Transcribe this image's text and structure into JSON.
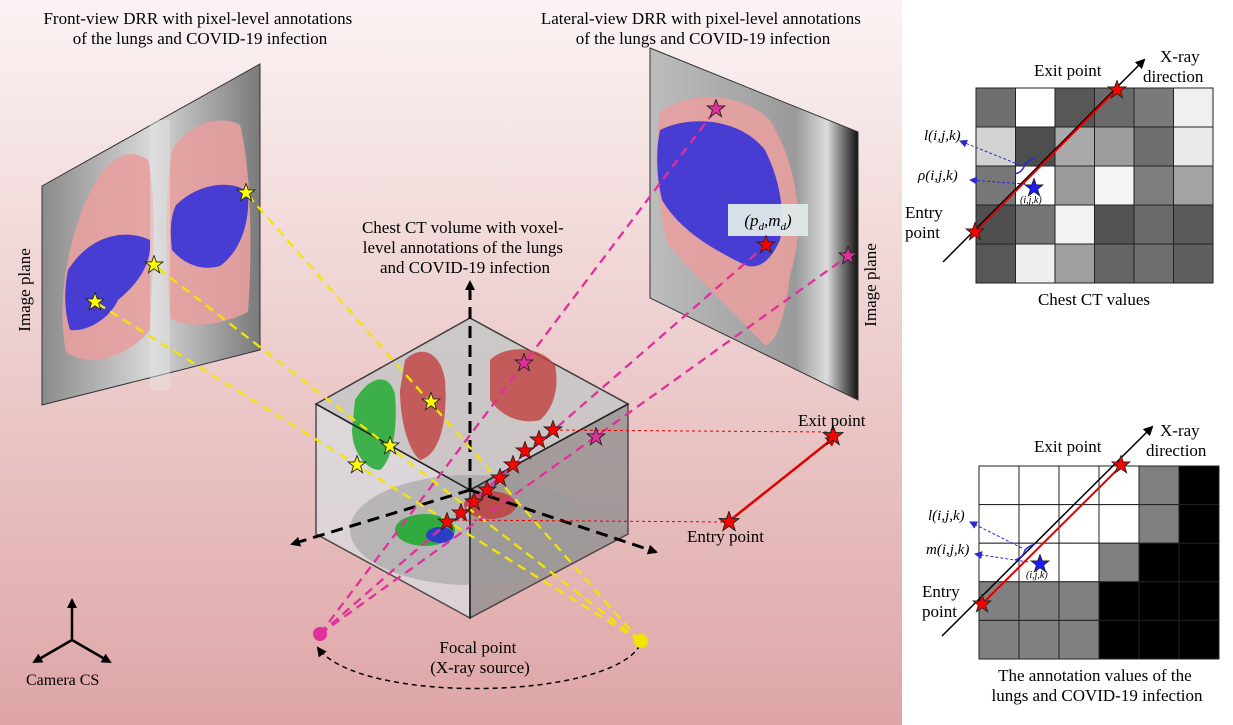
{
  "main": {
    "front_title": [
      "Front-view DRR with pixel-level annotations",
      "of the lungs and COVID-19 infection"
    ],
    "lateral_title": [
      "Lateral-view DRR with pixel-level annotations",
      "of the lungs and COVID-19 infection"
    ],
    "ct_title": [
      "Chest CT volume with voxel-",
      "level annotations of the lungs",
      "and COVID-19 infection"
    ],
    "image_plane_left": "Image plane",
    "image_plane_right": "Image plane",
    "pd_md": "(p_d, m_d)",
    "exit_point": "Exit point",
    "entry_point": "Entry point",
    "focal_point": [
      "Focal point",
      "(X-ray source)"
    ],
    "camera_cs": "Camera CS"
  },
  "top_panel": {
    "exit_point": "Exit point",
    "xray_direction": [
      "X-ray",
      "direction"
    ],
    "entry_point": [
      "Entry",
      "point"
    ],
    "l_label": "l(i,j,k)",
    "rho_label": "ρ(i,j,k)",
    "voxel_label": "(i,j,k)",
    "caption": "Chest CT values",
    "grid": [
      [
        "#6e6e6e",
        "#ffffff",
        "#575757",
        "#6a6a6a",
        "#7a7a7a",
        "#f0f0f0"
      ],
      [
        "#d2d2d2",
        "#4e4e4e",
        "#a9a9a9",
        "#9d9d9d",
        "#6f6f6f",
        "#eaeaea"
      ],
      [
        "#777777",
        "#ffffff",
        "#9a9a9a",
        "#f4f4f4",
        "#7d7d7d",
        "#a3a3a3"
      ],
      [
        "#4f4f4f",
        "#757575",
        "#f2f2f2",
        "#535353",
        "#6a6a6a",
        "#5a5a5a"
      ],
      [
        "#575757",
        "#efefef",
        "#9f9f9f",
        "#656565",
        "#6e6e6e",
        "#5f5f5f"
      ]
    ]
  },
  "bottom_panel": {
    "exit_point": "Exit point",
    "xray_direction": [
      "X-ray",
      "direction"
    ],
    "entry_point": [
      "Entry",
      "point"
    ],
    "l_label": "l(i,j,k)",
    "m_label": "m(i,j,k)",
    "voxel_label": "(i,j,k)",
    "caption": [
      "The annotation values of the",
      "lungs and COVID-19 infection"
    ],
    "grid": [
      [
        "#ffffff",
        "#ffffff",
        "#ffffff",
        "#ffffff",
        "#808080",
        "#000000"
      ],
      [
        "#ffffff",
        "#ffffff",
        "#ffffff",
        "#ffffff",
        "#808080",
        "#000000"
      ],
      [
        "#ffffff",
        "#ffffff",
        "#ffffff",
        "#808080",
        "#000000",
        "#000000"
      ],
      [
        "#808080",
        "#808080",
        "#808080",
        "#000000",
        "#000000",
        "#000000"
      ],
      [
        "#808080",
        "#808080",
        "#808080",
        "#000000",
        "#000000",
        "#000000"
      ]
    ]
  },
  "colors": {
    "bg_top": "#fbf3f3",
    "bg_bottom": "#dea5a6",
    "red_star": "#ff0000",
    "yellow_star": "#ffff00",
    "magenta_star": "#e0309a",
    "yellow_ray": "#f2e600",
    "magenta_ray": "#e0309a",
    "lung": "#e8a0a0",
    "infection": "#2b2bdc",
    "blue_star": "#1a1aff"
  }
}
